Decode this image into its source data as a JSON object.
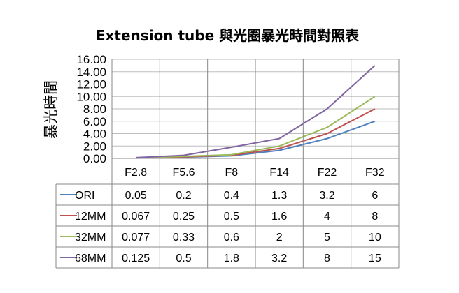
{
  "chart_data": {
    "type": "line",
    "title": "Extension tube 與光圈暴光時間對照表",
    "ylabel": "暴光時間",
    "xlabel": "",
    "ylim": [
      0,
      16
    ],
    "yticks": [
      "0.00",
      "2.00",
      "4.00",
      "6.00",
      "8.00",
      "10.00",
      "12.00",
      "14.00",
      "16.00"
    ],
    "categories": [
      "F2.8",
      "F5.6",
      "F8",
      "F14",
      "F22",
      "F32"
    ],
    "grid": true,
    "legend": "data-table",
    "series": [
      {
        "name": "ORI",
        "color": "#4f81bd",
        "values": [
          0.05,
          0.2,
          0.4,
          1.3,
          3.2,
          6
        ],
        "labels": [
          "0.05",
          "0.2",
          "0.4",
          "1.3",
          "3.2",
          "6"
        ]
      },
      {
        "name": "12MM",
        "color": "#c0504d",
        "values": [
          0.067,
          0.25,
          0.5,
          1.6,
          4,
          8
        ],
        "labels": [
          "0.067",
          "0.25",
          "0.5",
          "1.6",
          "4",
          "8"
        ]
      },
      {
        "name": "32MM",
        "color": "#9bbb59",
        "values": [
          0.077,
          0.33,
          0.6,
          2,
          5,
          10
        ],
        "labels": [
          "0.077",
          "0.33",
          "0.6",
          "2",
          "5",
          "10"
        ]
      },
      {
        "name": "68MM",
        "color": "#8064a2",
        "values": [
          0.125,
          0.5,
          1.8,
          3.2,
          8,
          15
        ],
        "labels": [
          "0.125",
          "0.5",
          "1.8",
          "3.2",
          "8",
          "15"
        ]
      }
    ]
  }
}
